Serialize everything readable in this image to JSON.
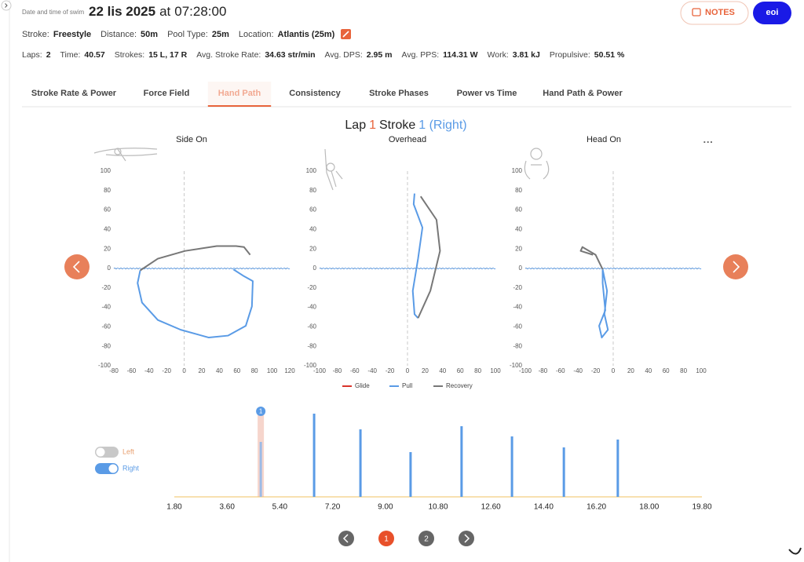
{
  "header": {
    "label": "Date and time of swim",
    "date": "22 lis 2025",
    "at": "at",
    "time": "07:28:00",
    "notes_button": "NOTES",
    "user_button": "eoi"
  },
  "details": [
    {
      "label": "Stroke:",
      "value": "Freestyle"
    },
    {
      "label": "Distance:",
      "value": "50m"
    },
    {
      "label": "Pool Type:",
      "value": "25m"
    },
    {
      "label": "Location:",
      "value": "Atlantis (25m)"
    }
  ],
  "stats": [
    {
      "label": "Laps:",
      "value": "2"
    },
    {
      "label": "Time:",
      "value": "40.57"
    },
    {
      "label": "Strokes:",
      "value": "15 L, 17 R"
    },
    {
      "label": "Avg. Stroke Rate:",
      "value": "34.63 str/min"
    },
    {
      "label": "Avg. DPS:",
      "value": "2.95 m"
    },
    {
      "label": "Avg. PPS:",
      "value": "114.31 W"
    },
    {
      "label": "Work:",
      "value": "3.81 kJ"
    },
    {
      "label": "Propulsive:",
      "value": "50.51 %"
    }
  ],
  "tabs": {
    "items": [
      "Stroke Rate & Power",
      "Force Field",
      "Hand Path",
      "Consistency",
      "Stroke Phases",
      "Power vs Time",
      "Hand Path & Power"
    ],
    "active": 2
  },
  "lap_title": {
    "lap_label": "Lap",
    "lap": "1",
    "stroke_label": "Stroke",
    "stroke": "1 (Right)"
  },
  "chart_data": [
    {
      "type": "line",
      "title": "Side On",
      "xlim": [
        -80,
        120
      ],
      "ylim": [
        -100,
        100
      ],
      "xticks": [
        -80,
        -60,
        -40,
        -20,
        0,
        20,
        40,
        60,
        80,
        100,
        120
      ],
      "yticks": [
        100,
        80,
        60,
        40,
        20,
        0,
        -20,
        -40,
        -60,
        -80,
        -100
      ],
      "series": [
        {
          "name": "Pull",
          "color": "#5a9be6",
          "x": [
            56,
            68,
            78,
            77,
            70,
            50,
            28,
            -4,
            -30,
            -48,
            -53,
            -50
          ],
          "values": [
            -1,
            -8,
            -13,
            -39,
            -59,
            -69,
            -71,
            -63,
            -53,
            -35,
            -15,
            -2
          ]
        },
        {
          "name": "Recovery",
          "color": "#777777",
          "x": [
            -50,
            -30,
            1,
            37,
            59,
            68,
            75
          ],
          "values": [
            -2,
            10,
            18,
            23,
            23,
            22,
            14
          ]
        }
      ]
    },
    {
      "type": "line",
      "title": "Overhead",
      "xlim": [
        -100,
        100
      ],
      "ylim": [
        -100,
        100
      ],
      "xticks": [
        -100,
        -80,
        -60,
        -40,
        -20,
        0,
        20,
        40,
        60,
        80,
        100
      ],
      "yticks": [
        100,
        80,
        60,
        40,
        20,
        0,
        -20,
        -40,
        -60,
        -80,
        -100
      ],
      "series": [
        {
          "name": "Glide",
          "color": "#d9342b",
          "x": [],
          "values": []
        },
        {
          "name": "Pull",
          "color": "#5a9be6",
          "x": [
            8,
            7,
            17,
            12,
            6,
            8,
            12
          ],
          "values": [
            77,
            66,
            42,
            10,
            -23,
            -47,
            -51
          ]
        },
        {
          "name": "Recovery",
          "color": "#777777",
          "x": [
            12,
            26,
            37,
            33,
            15
          ],
          "values": [
            -51,
            -23,
            18,
            50,
            74
          ]
        }
      ]
    },
    {
      "type": "line",
      "title": "Head On",
      "xlim": [
        -100,
        100
      ],
      "ylim": [
        -100,
        100
      ],
      "xticks": [
        -100,
        -80,
        -60,
        -40,
        -20,
        0,
        20,
        40,
        60,
        80,
        100
      ],
      "yticks": [
        100,
        80,
        60,
        40,
        20,
        0,
        -20,
        -40,
        -60,
        -80,
        -100
      ],
      "series": [
        {
          "name": "Pull",
          "color": "#5a9be6",
          "x": [
            -12,
            -7,
            -10,
            -6,
            -13,
            -16,
            -9,
            -12,
            -12
          ],
          "values": [
            -1,
            -23,
            -47,
            -63,
            -71,
            -59,
            -43,
            -15,
            -1
          ]
        },
        {
          "name": "Recovery",
          "color": "#777777",
          "x": [
            -12,
            -20,
            -35,
            -37,
            -23
          ],
          "values": [
            -1,
            14,
            22,
            18,
            14
          ]
        }
      ]
    },
    {
      "type": "bar",
      "x": [
        4.75,
        6.57,
        8.15,
        9.86,
        11.6,
        13.32,
        15.09,
        16.93
      ],
      "values": [
        70,
        106,
        86,
        57,
        90,
        77,
        63,
        73
      ],
      "color": "#5a9be6",
      "xlim": [
        1.8,
        19.8
      ],
      "ylim": [
        0,
        110
      ],
      "xticks": [
        {
          "value": 1.8,
          "label": "1.80"
        },
        {
          "value": 3.6,
          "label": "3.60"
        },
        {
          "value": 5.4,
          "label": "5.40"
        },
        {
          "value": 7.2,
          "label": "7.20"
        },
        {
          "value": 9,
          "label": "9.00"
        },
        {
          "value": 10.8,
          "label": "10.80"
        },
        {
          "value": 12.6,
          "label": "12.60"
        },
        {
          "value": 14.4,
          "label": "14.40"
        },
        {
          "value": 16.2,
          "label": "16.20"
        },
        {
          "value": 18,
          "label": "18.00"
        },
        {
          "value": 19.8,
          "label": "19.80"
        }
      ],
      "selected": {
        "index": 0,
        "label": "1"
      }
    }
  ],
  "toggles": [
    {
      "label": "Left",
      "on": false
    },
    {
      "label": "Right",
      "on": true
    }
  ],
  "pagination": {
    "pages": [
      "1",
      "2"
    ],
    "active": 0
  }
}
